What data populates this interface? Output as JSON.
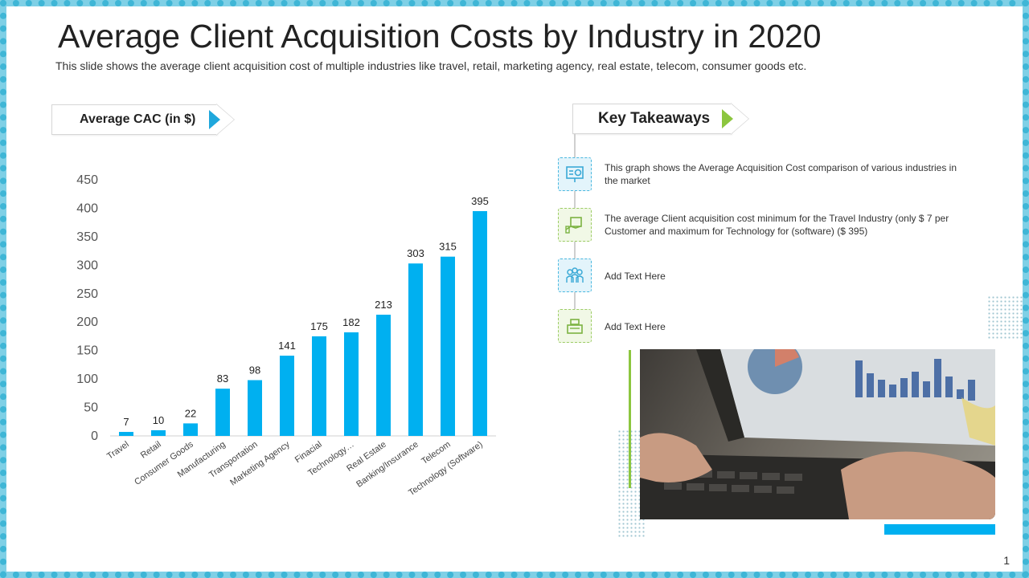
{
  "page": {
    "title": "Average Client Acquisition Costs by Industry in 2020",
    "subtitle": "This slide shows the average client acquisition cost of multiple industries like travel, retail, marketing agency, real estate, telecom, consumer goods etc.",
    "page_number": "1"
  },
  "chart_header": {
    "label": "Average CAC (in $)"
  },
  "takeaways": {
    "header": "Key Takeaways",
    "items": [
      {
        "text": "This graph shows the Average  Acquisition Cost comparison  of various industries in the market",
        "icon": "presentation-chart-icon"
      },
      {
        "text": "The average  Client acquisition cost minimum for the Travel  Industry (only $ 7 per Customer and maximum for Technology  for (software)  ($ 395)",
        "icon": "money-hand-icon"
      },
      {
        "text": "Add Text Here",
        "icon": "team-icon"
      },
      {
        "text": "Add Text Here",
        "icon": "cash-register-icon"
      }
    ]
  },
  "colors": {
    "bar": "#00b0f0",
    "accent_blue": "#1fa7dc",
    "accent_green": "#8cc63f"
  },
  "chart_data": {
    "type": "bar",
    "categories": [
      "Travel",
      "Retail",
      "Consumer Goods",
      "Manufacturing",
      "Transportation",
      "Marketing Agency",
      "Finacial",
      "Technology…",
      "Real Estate",
      "Banking/Insurance",
      "Telecom",
      "Technology (Software)"
    ],
    "values": [
      7,
      10,
      22,
      83,
      98,
      141,
      175,
      182,
      213,
      303,
      315,
      395
    ],
    "yticks": [
      "0",
      "50",
      "100",
      "150",
      "200",
      "250",
      "300",
      "350",
      "400",
      "450"
    ],
    "ylim": [
      0,
      450
    ],
    "grid": false,
    "legend": "none"
  }
}
